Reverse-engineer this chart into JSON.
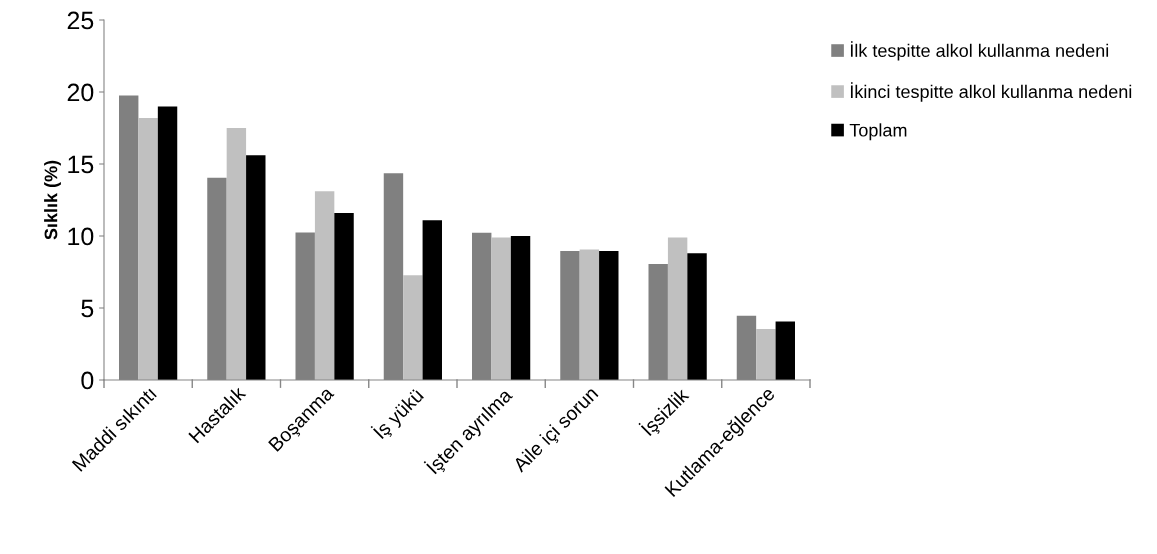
{
  "chart_data": {
    "type": "bar",
    "ylabel": "Sıklık (%)",
    "categories": [
      "Maddi sıkıntı",
      "Hastalık",
      "Boşanma",
      "İş yükü",
      "İşten ayrılma",
      "Aile içi sorun",
      "İşsizlik",
      "Kutlama-eğlence"
    ],
    "series": [
      {
        "name": "İlk tespitte alkol kullanma nedeni",
        "color": "#808080",
        "values": [
          19.75,
          14.05,
          10.25,
          14.35,
          10.23,
          8.96,
          8.06,
          4.47
        ]
      },
      {
        "name": "İkinci tespitte alkol kullanma nedeni",
        "color": "#c0c0c0",
        "values": [
          18.2,
          17.5,
          13.1,
          7.27,
          9.9,
          9.07,
          9.9,
          3.54
        ]
      },
      {
        "name": "Toplam",
        "color": "#000000",
        "values": [
          19.0,
          15.6,
          11.6,
          11.1,
          10.0,
          8.96,
          8.8,
          4.07
        ]
      }
    ],
    "ylim": [
      0,
      25
    ],
    "yticks": [
      0,
      5,
      10,
      15,
      20,
      25
    ],
    "grid": false,
    "legend": "top right"
  }
}
